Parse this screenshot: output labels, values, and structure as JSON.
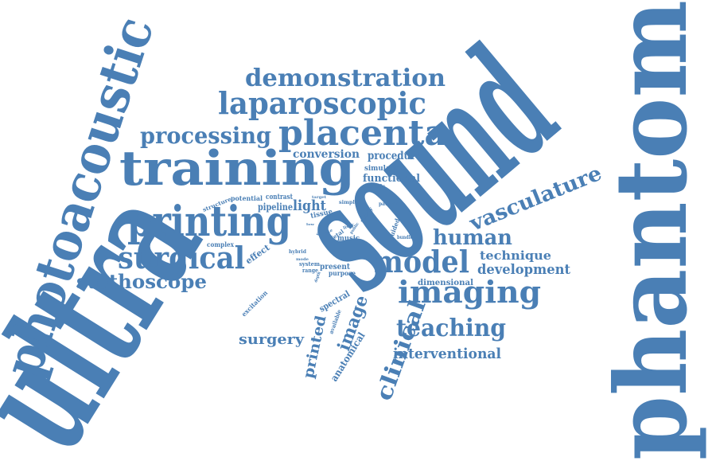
{
  "palette": {
    "word_color": "#4a7fb5",
    "background": "#ffffff"
  },
  "words": {
    "ultrasound_a": "ultra",
    "ultrasound_b": "sound",
    "phantom": "phantom",
    "photoacoustic": "photoacoustic",
    "training": "training",
    "placenta": "placenta",
    "laparoscopic": "laparoscopic",
    "demonstration": "demonstration",
    "processing": "processing",
    "printing": "printing",
    "surgical": "surgical",
    "stethoscope": "stethoscope",
    "model": "model",
    "imaging": "imaging",
    "teaching": "teaching",
    "interventional": "interventional",
    "clinical": "clinical",
    "vasculature": "vasculature",
    "human": "human",
    "technique": "technique",
    "development": "development",
    "dimensional": "dimensional",
    "surgery": "surgery",
    "printed": "printed",
    "image": "image",
    "anatomical": "anatomical",
    "conversion": "conversion",
    "procedure": "procedure",
    "simulation": "simulation",
    "functional": "functional",
    "specific": "specific",
    "light": "light",
    "tissue": "tissue",
    "pipeline": "pipeline",
    "contrast": "contrast",
    "potential": "potential",
    "structure": "structure",
    "complex": "complex",
    "effect": "effect",
    "hybrid": "hybrid",
    "mode": "mode",
    "system": "system",
    "range": "range",
    "present": "present",
    "purpose": "purpose",
    "music": "music",
    "study": "study",
    "patient": "patient",
    "guided": "guided",
    "bundle": "bundle",
    "target": "target",
    "simple": "simple",
    "spectral": "spectral",
    "available": "available",
    "excitation": "excitation",
    "depth": "depth",
    "fetal": "fetal",
    "liver": "liver",
    "rate": "rate",
    "need": "need",
    "low": "low",
    "public": "public"
  }
}
